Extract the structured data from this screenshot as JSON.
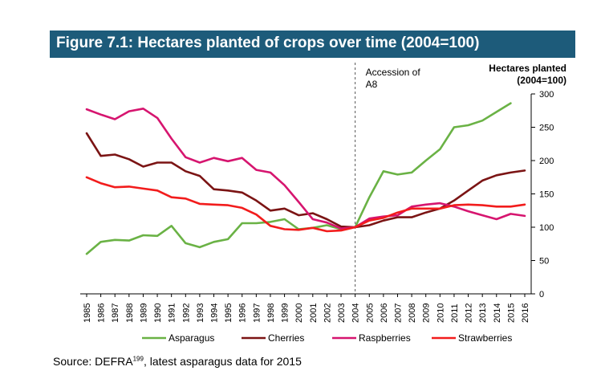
{
  "figure": {
    "title": "Figure 7.1: Hectares planted of crops over time (2004=100)",
    "source_prefix": "Source: DEFRA",
    "source_sup": "199",
    "source_suffix": ", latest asparagus data for 2015"
  },
  "chart_data": {
    "type": "line",
    "x": [
      "1985",
      "1986",
      "1987",
      "1988",
      "1989",
      "1990",
      "1991",
      "1992",
      "1993",
      "1994",
      "1995",
      "1996",
      "1997",
      "1998",
      "1999",
      "2000",
      "2001",
      "2002",
      "2003",
      "2004",
      "2005",
      "2006",
      "2007",
      "2008",
      "2009",
      "2010",
      "2011",
      "2012",
      "2013",
      "2014",
      "2015",
      "2016"
    ],
    "ylim": [
      0,
      300
    ],
    "yticks": [
      "0",
      "50",
      "100",
      "150",
      "200",
      "250",
      "300"
    ],
    "ylabel_line1": "Hectares planted",
    "ylabel_line2": "(2004=100)",
    "y_axis_position": "right",
    "grid": false,
    "legend_position": "bottom",
    "annotation": {
      "line1": "Accession of",
      "line2": "A8",
      "at_x": "2004",
      "style": "dashed vertical line"
    },
    "series": [
      {
        "name": "Asparagus",
        "color": "#6ab245",
        "values": [
          60,
          78,
          81,
          80,
          88,
          87,
          102,
          76,
          70,
          78,
          82,
          106,
          106,
          108,
          112,
          97,
          99,
          103,
          97,
          100,
          145,
          184,
          179,
          182,
          200,
          217,
          250,
          253,
          260,
          273,
          286,
          null
        ]
      },
      {
        "name": "Cherries",
        "color": "#7b1414",
        "values": [
          241,
          207,
          209,
          202,
          191,
          197,
          197,
          184,
          177,
          157,
          155,
          152,
          140,
          125,
          128,
          118,
          121,
          112,
          101,
          100,
          103,
          110,
          115,
          115,
          122,
          128,
          140,
          155,
          170,
          178,
          182,
          185
        ]
      },
      {
        "name": "Raspberries",
        "color": "#d6156f",
        "values": [
          277,
          269,
          262,
          274,
          278,
          264,
          233,
          205,
          197,
          204,
          199,
          204,
          186,
          182,
          163,
          138,
          112,
          107,
          98,
          100,
          113,
          116,
          118,
          131,
          134,
          136,
          131,
          124,
          118,
          112,
          120,
          117
        ]
      },
      {
        "name": "Strawberries",
        "color": "#f21c1c",
        "values": [
          175,
          166,
          160,
          161,
          158,
          155,
          145,
          143,
          135,
          134,
          133,
          129,
          119,
          102,
          97,
          96,
          99,
          94,
          95,
          100,
          110,
          114,
          122,
          128,
          128,
          128,
          133,
          134,
          133,
          131,
          131,
          134
        ]
      }
    ]
  }
}
